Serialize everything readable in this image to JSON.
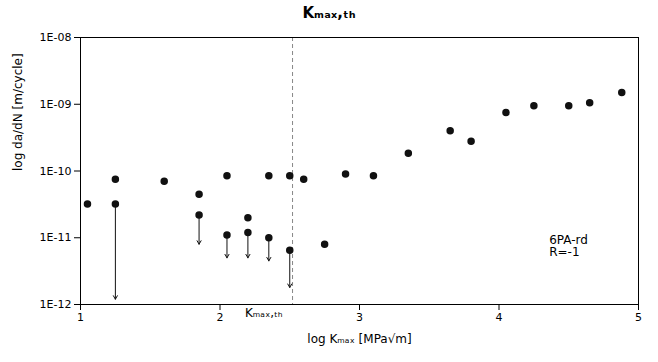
{
  "chart_data": {
    "type": "scatter",
    "title": "Kₘₐₓ,ₜₕ",
    "xlabel": "log Kₘₐₓ [MPa√m]",
    "ylabel": "log da/dN [m/cycle]",
    "log": "y",
    "grid": false,
    "color": "#111111",
    "marker": "circle",
    "xlim": [
      1,
      5
    ],
    "ylim": [
      1e-12,
      1e-08
    ],
    "xticks": [
      1,
      2,
      3,
      4,
      5
    ],
    "yticks": [
      {
        "value": 1e-12,
        "label": "1E-12"
      },
      {
        "value": 1e-11,
        "label": "1E-11"
      },
      {
        "value": 1e-10,
        "label": "1E-10"
      },
      {
        "value": 1e-09,
        "label": "1E-09"
      },
      {
        "value": 1e-08,
        "label": "1E-08"
      }
    ],
    "x": [
      1.05,
      1.25,
      1.25,
      1.6,
      1.85,
      1.85,
      2.05,
      2.05,
      2.2,
      2.2,
      2.35,
      2.35,
      2.5,
      2.5,
      2.6,
      2.75,
      2.9,
      3.1,
      3.35,
      3.65,
      3.8,
      4.05,
      4.25,
      4.5,
      4.65,
      4.88
    ],
    "values": [
      3.2e-11,
      3.2e-11,
      7.5e-11,
      7e-11,
      2.2e-11,
      4.5e-11,
      1.1e-11,
      8.5e-11,
      1.2e-11,
      2e-11,
      1e-11,
      8.5e-11,
      6.5e-12,
      8.5e-11,
      7.5e-11,
      8e-12,
      9e-11,
      8.5e-11,
      1.85e-10,
      4e-10,
      2.8e-10,
      7.5e-10,
      9.5e-10,
      9.5e-10,
      1.05e-09,
      1.5e-09
    ],
    "arrows": [
      {
        "x1": 1.25,
        "y1": 3.2e-11,
        "x2": 1.25,
        "y2": 1.2e-12
      },
      {
        "x1": 1.85,
        "y1": 2.2e-11,
        "x2": 1.85,
        "y2": 8e-12
      },
      {
        "x1": 2.05,
        "y1": 1.1e-11,
        "x2": 2.05,
        "y2": 5e-12
      },
      {
        "x1": 2.2,
        "y1": 1.2e-11,
        "x2": 2.2,
        "y2": 5e-12
      },
      {
        "x1": 2.35,
        "y1": 1e-11,
        "x2": 2.35,
        "y2": 4.5e-12
      },
      {
        "x1": 2.5,
        "y1": 6.5e-12,
        "x2": 2.5,
        "y2": 1.8e-12
      }
    ],
    "vlines": [
      {
        "x": 2.52,
        "label": "Kₘₐₓ,ₜₕ",
        "line_style": "dashed"
      }
    ],
    "annotations": [
      "6PA-rd\nR=-1"
    ]
  }
}
